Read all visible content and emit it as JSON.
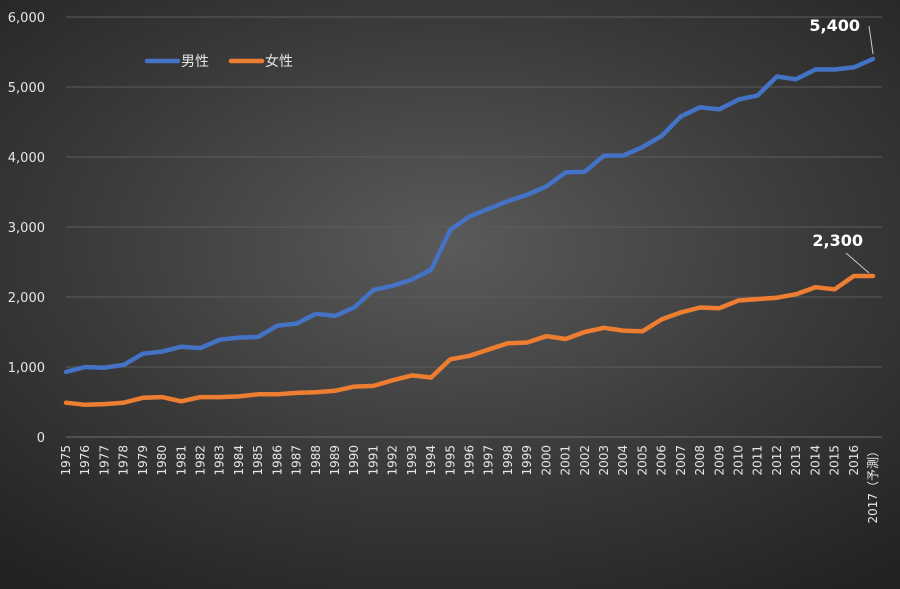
{
  "chart_data": {
    "type": "line",
    "title": "",
    "xlabel": "",
    "ylabel": "",
    "ylim": [
      0,
      6000
    ],
    "yticks": [
      "0",
      "1,000",
      "2,000",
      "3,000",
      "4,000",
      "5,000",
      "6,000"
    ],
    "grid": true,
    "legend": "top-left",
    "categories": [
      "1975",
      "1976",
      "1977",
      "1978",
      "1979",
      "1980",
      "1981",
      "1982",
      "1983",
      "1984",
      "1985",
      "1986",
      "1987",
      "1988",
      "1989",
      "1990",
      "1991",
      "1992",
      "1993",
      "1994",
      "1995",
      "1996",
      "1997",
      "1998",
      "1999",
      "2000",
      "2001",
      "2002",
      "2003",
      "2004",
      "2005",
      "2006",
      "2007",
      "2008",
      "2009",
      "2010",
      "2011",
      "2012",
      "2013",
      "2014",
      "2015",
      "2016",
      "2017（予測）"
    ],
    "series": [
      {
        "name": "男性",
        "color": "#4472c4",
        "values": [
          930,
          1000,
          990,
          1030,
          1190,
          1220,
          1290,
          1270,
          1390,
          1420,
          1430,
          1590,
          1620,
          1760,
          1730,
          1850,
          2100,
          2160,
          2250,
          2390,
          2960,
          3150,
          3260,
          3370,
          3460,
          3580,
          3780,
          3790,
          4020,
          4020,
          4140,
          4300,
          4580,
          4710,
          4680,
          4820,
          4880,
          5150,
          5110,
          5250,
          5250,
          5280,
          5400
        ]
      },
      {
        "name": "女性",
        "color": "#ed7d31",
        "values": [
          490,
          460,
          470,
          490,
          560,
          570,
          510,
          570,
          570,
          580,
          610,
          610,
          630,
          640,
          660,
          720,
          730,
          810,
          880,
          850,
          1110,
          1160,
          1250,
          1340,
          1350,
          1440,
          1400,
          1500,
          1560,
          1520,
          1510,
          1680,
          1780,
          1850,
          1840,
          1950,
          1970,
          1990,
          2040,
          2140,
          2110,
          2300,
          2300
        ]
      }
    ],
    "annotations": [
      {
        "text": "5,400",
        "series": 0,
        "index": 42
      },
      {
        "text": "2,300",
        "series": 1,
        "index": 42
      }
    ]
  }
}
